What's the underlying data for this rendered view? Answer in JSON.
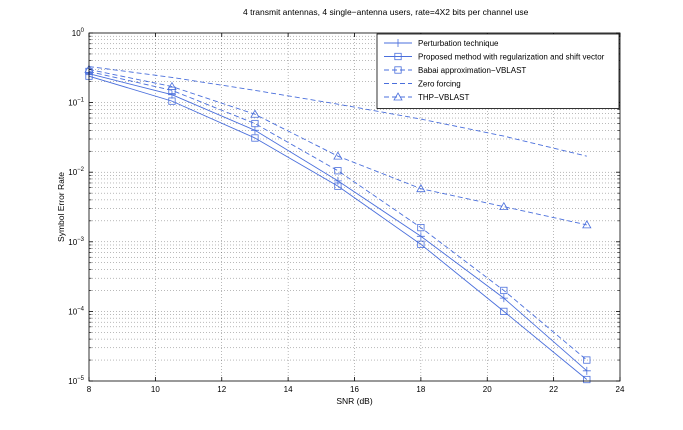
{
  "chart_data": {
    "type": "line",
    "title": "4 transmit antennas, 4 single−antenna users, rate=4X2 bits per channel use",
    "xlabel": "SNR (dB)",
    "ylabel": "Symbol Error Rate",
    "xlim": [
      8,
      24
    ],
    "ylim": [
      1e-05,
      1
    ],
    "yscale": "log",
    "grid": true,
    "legend_position": "top-right",
    "x_ticks": [
      {
        "value": 8,
        "label": "8"
      },
      {
        "value": 10,
        "label": "10"
      },
      {
        "value": 12,
        "label": "12"
      },
      {
        "value": 14,
        "label": "14"
      },
      {
        "value": 16,
        "label": "16"
      },
      {
        "value": 18,
        "label": "18"
      },
      {
        "value": 20,
        "label": "20"
      },
      {
        "value": 22,
        "label": "22"
      },
      {
        "value": 24,
        "label": "24"
      }
    ],
    "y_ticks": [
      {
        "value": 1,
        "mantissa": "10",
        "exponent": "0"
      },
      {
        "value": 0.1,
        "mantissa": "10",
        "exponent": "−1"
      },
      {
        "value": 0.01,
        "mantissa": "10",
        "exponent": "−2"
      },
      {
        "value": 0.001,
        "mantissa": "10",
        "exponent": "−3"
      },
      {
        "value": 0.0001,
        "mantissa": "10",
        "exponent": "−4"
      },
      {
        "value": 1e-05,
        "mantissa": "10",
        "exponent": "−5"
      }
    ],
    "series": [
      {
        "name": "Perturbation technique",
        "color": "#4a6fdc",
        "line": "solid",
        "marker": "plus",
        "x": [
          8,
          10.5,
          13,
          15.5,
          18,
          20.5,
          23
        ],
        "y": [
          0.26,
          0.13,
          0.04,
          0.0075,
          0.0012,
          0.000155,
          1.4e-05
        ]
      },
      {
        "name": "Proposed method with regularization and shift vector",
        "color": "#4a6fdc",
        "line": "solid",
        "marker": "square",
        "x": [
          8,
          10.5,
          13,
          15.5,
          18,
          20.5,
          23
        ],
        "y": [
          0.24,
          0.105,
          0.031,
          0.0063,
          0.00092,
          0.0001,
          1.05e-05
        ]
      },
      {
        "name": "Babai approximation−VBLAST",
        "color": "#4a6fdc",
        "line": "dashed",
        "marker": "square",
        "x": [
          8,
          10.5,
          13,
          15.5,
          18,
          20.5,
          23
        ],
        "y": [
          0.28,
          0.15,
          0.05,
          0.0105,
          0.0016,
          0.0002,
          2e-05
        ]
      },
      {
        "name": "Zero forcing",
        "color": "#4a6fdc",
        "line": "dashed",
        "marker": "none",
        "x": [
          8,
          10.5,
          13,
          15.5,
          18,
          20.5,
          23
        ],
        "y": [
          0.33,
          0.23,
          0.15,
          0.095,
          0.058,
          0.033,
          0.017
        ]
      },
      {
        "name": "THP−VBLAST",
        "color": "#4a6fdc",
        "line": "dashed",
        "marker": "triangle",
        "x": [
          8,
          10.5,
          13,
          15.5,
          18,
          20.5,
          23
        ],
        "y": [
          0.3,
          0.17,
          0.068,
          0.017,
          0.0058,
          0.0032,
          0.00175
        ]
      }
    ]
  }
}
